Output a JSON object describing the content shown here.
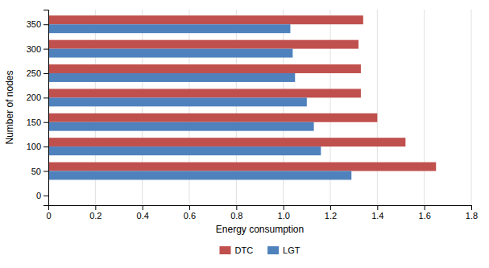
{
  "chart_data": {
    "type": "bar",
    "orientation": "horizontal",
    "xlabel": "Energy consumption",
    "ylabel": "Number of nodes",
    "categories": [
      50,
      100,
      150,
      200,
      250,
      300,
      350
    ],
    "series": [
      {
        "name": "DTC",
        "color": "#c0504d",
        "values": [
          1.65,
          1.52,
          1.4,
          1.33,
          1.33,
          1.32,
          1.34
        ]
      },
      {
        "name": "LGT",
        "color": "#4f81bd",
        "values": [
          1.29,
          1.16,
          1.13,
          1.1,
          1.05,
          1.04,
          1.03
        ]
      }
    ],
    "xlim": [
      0,
      1.8
    ],
    "xticks": [
      0,
      0.2,
      0.4,
      0.6,
      0.8,
      {
        "value": 1.0,
        "label": "1.0"
      },
      1.2,
      1.4,
      1.6,
      1.8
    ],
    "ylim": [
      -20,
      380
    ],
    "yticks": [
      0,
      50,
      100,
      150,
      200,
      250,
      300,
      350
    ],
    "grid": true,
    "legend": "bottom"
  }
}
